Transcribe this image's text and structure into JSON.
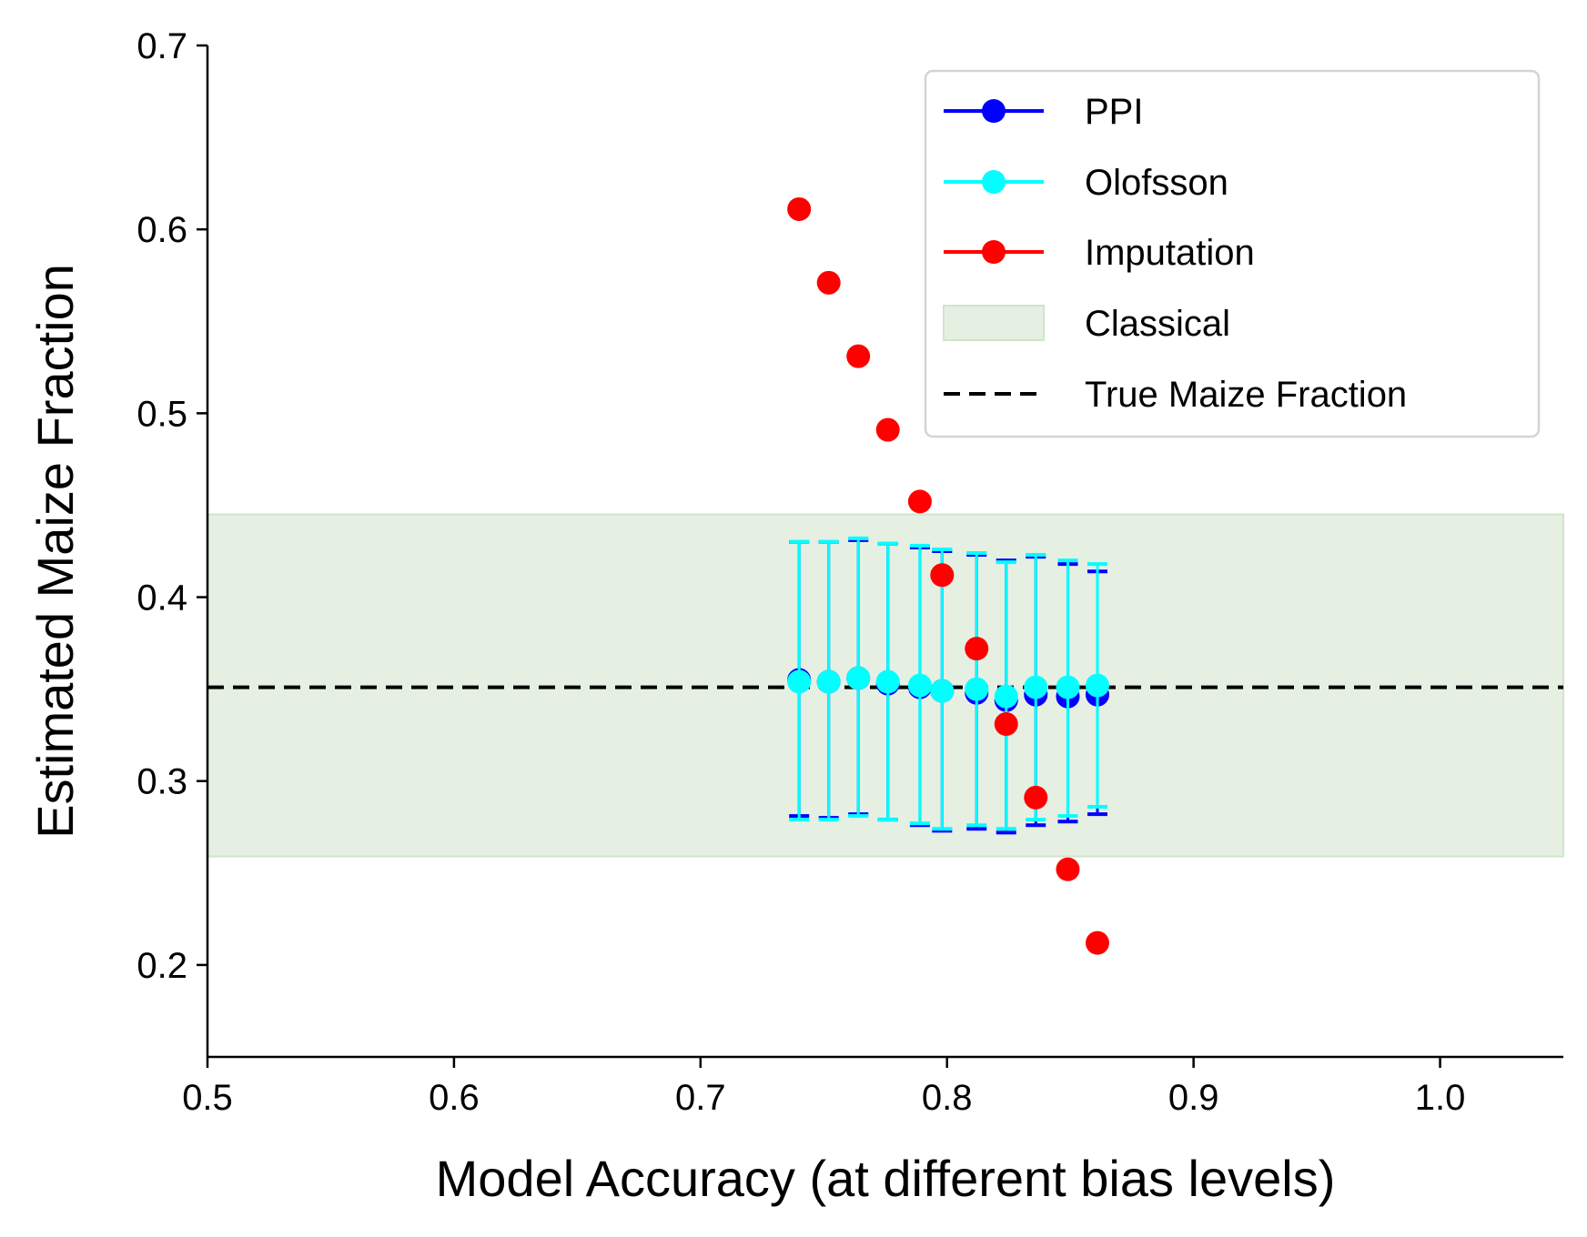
{
  "chart_data": {
    "type": "scatter",
    "title": "",
    "xlabel": "Model Accuracy (at different bias levels)",
    "ylabel": "Estimated Maize Fraction",
    "xlim": [
      0.5,
      1.05
    ],
    "ylim": [
      0.15,
      0.7
    ],
    "xticks": [
      "0.5",
      "0.6",
      "0.7",
      "0.8",
      "0.9",
      "1.0"
    ],
    "yticks": [
      "0.2",
      "0.3",
      "0.4",
      "0.5",
      "0.6",
      "0.7"
    ],
    "grid": false,
    "legend_position": "top-right",
    "true_value": {
      "name": "True Maize Fraction",
      "y": 0.351,
      "color": "#000000",
      "style": "dashed"
    },
    "classical_band": {
      "name": "Classical",
      "ymin": 0.259,
      "ymax": 0.445,
      "color": "#e5f0e2"
    },
    "series": [
      {
        "name": "PPI",
        "color": "#0000ff",
        "x": [
          0.74,
          0.752,
          0.764,
          0.776,
          0.789,
          0.798,
          0.812,
          0.824,
          0.836,
          0.849,
          0.861
        ],
        "y": [
          0.355,
          0.354,
          0.356,
          0.353,
          0.351,
          0.349,
          0.348,
          0.344,
          0.347,
          0.346,
          0.347
        ],
        "err_low": [
          0.281,
          0.28,
          0.282,
          0.279,
          0.276,
          0.273,
          0.274,
          0.272,
          0.276,
          0.278,
          0.282
        ],
        "err_high": [
          0.43,
          0.43,
          0.431,
          0.429,
          0.427,
          0.425,
          0.423,
          0.42,
          0.422,
          0.418,
          0.414
        ]
      },
      {
        "name": "Olofsson",
        "color": "#00ffff",
        "x": [
          0.74,
          0.752,
          0.764,
          0.776,
          0.789,
          0.798,
          0.812,
          0.824,
          0.836,
          0.849,
          0.861
        ],
        "y": [
          0.354,
          0.354,
          0.356,
          0.354,
          0.352,
          0.349,
          0.35,
          0.346,
          0.351,
          0.351,
          0.352
        ],
        "err_low": [
          0.279,
          0.279,
          0.281,
          0.279,
          0.277,
          0.274,
          0.276,
          0.274,
          0.279,
          0.281,
          0.286
        ],
        "err_high": [
          0.43,
          0.43,
          0.432,
          0.429,
          0.428,
          0.426,
          0.424,
          0.419,
          0.423,
          0.42,
          0.418
        ]
      },
      {
        "name": "Imputation",
        "color": "#ff0000",
        "x": [
          0.74,
          0.752,
          0.764,
          0.776,
          0.789,
          0.798,
          0.812,
          0.824,
          0.836,
          0.849,
          0.861
        ],
        "y": [
          0.611,
          0.571,
          0.531,
          0.491,
          0.452,
          0.412,
          0.372,
          0.331,
          0.291,
          0.252,
          0.212
        ]
      }
    ],
    "legend": [
      "PPI",
      "Olofsson",
      "Imputation",
      "Classical",
      "True Maize Fraction"
    ]
  }
}
